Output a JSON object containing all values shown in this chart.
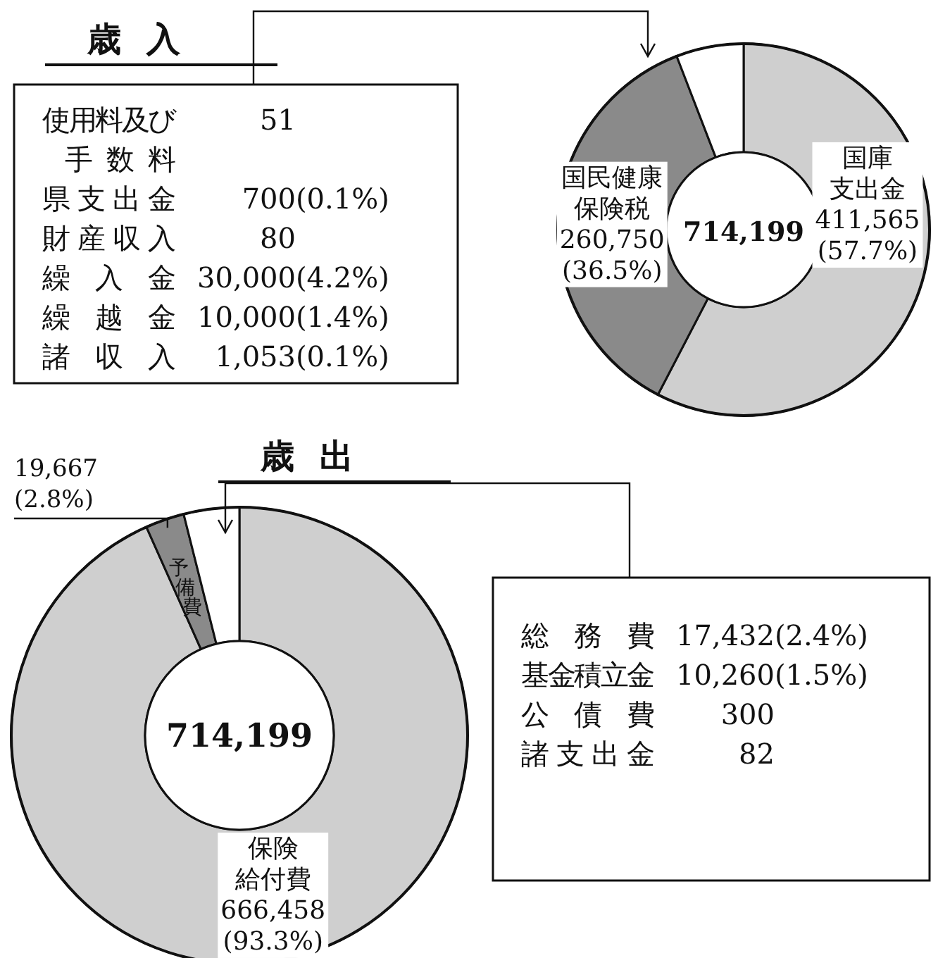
{
  "chart_data": [
    {
      "type": "donut",
      "title": "歳入",
      "categories": [
        "国庫支出金",
        "国民健康保険税",
        null
      ],
      "values": [
        411565,
        260750,
        41884
      ],
      "colors": [
        "#cfcfcf",
        "#8a8a8a",
        "#ffffff"
      ],
      "value_labels": [
        "411,565(57.7%)",
        "260,750(36.5%)",
        null
      ],
      "annotations": [
        "714,199",
        "使用料及び手数料 51",
        "県支出金 700(0.1%)",
        "財産収入 80",
        "繰入金 30,000(4.2%)",
        "繰越金 10,000(1.4%)",
        "諸収入 1,053(0.1%)"
      ]
    },
    {
      "type": "donut",
      "title": "歳出",
      "categories": [
        "保険給付費",
        "予備費",
        null
      ],
      "values": [
        666458,
        19667,
        28074
      ],
      "colors": [
        "#cfcfcf",
        "#8a8a8a",
        "#ffffff"
      ],
      "value_labels": [
        "666,458(93.3%)",
        "19,667(2.8%)",
        null
      ],
      "annotations": [
        "714,199",
        "総務費 17,432(2.4%)",
        "基金積立金 10,260(1.5%)",
        "公債費 300",
        "諸支出金 82"
      ]
    }
  ]
}
